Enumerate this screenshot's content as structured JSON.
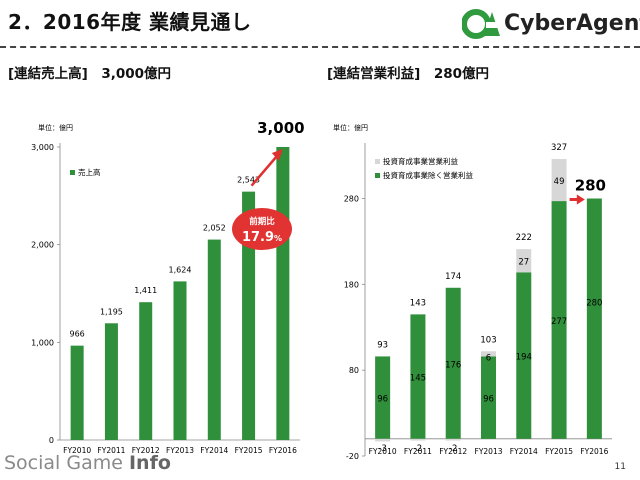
{
  "header": {
    "title": "2．2016年度 業績見通し",
    "logo_text": "CyberAgent"
  },
  "sections": {
    "left": "[連結売上高]　3,000億円",
    "right": "[連結営業利益]　280億円"
  },
  "colors": {
    "bar_green": "#2f8f3a",
    "bar_gray": "#d7d7d7",
    "arrow_red": "#e03030",
    "badge_red": "#e23333"
  },
  "chart_data": [
    {
      "type": "bar",
      "unit_label": "単位：億円",
      "categories": [
        "FY2010",
        "FY2011",
        "FY2012",
        "FY2013",
        "FY2014",
        "FY2015",
        "FY2016"
      ],
      "series": [
        {
          "name": "売上高",
          "values": [
            966,
            1195,
            1411,
            1624,
            2052,
            2543,
            3000
          ]
        }
      ],
      "data_labels": [
        "966",
        "1,195",
        "1,411",
        "1,624",
        "2,052",
        "2,543",
        "3,000"
      ],
      "yticks": [
        0,
        1000,
        2000,
        3000
      ],
      "ytick_labels": [
        "0",
        "1,000",
        "2,000",
        "3,000"
      ],
      "ylim": [
        0,
        3000
      ],
      "legend": "top-left",
      "badge": {
        "line1": "前期比",
        "line2": "17.9",
        "unit": "%"
      }
    },
    {
      "type": "bar",
      "stacked": true,
      "unit_label": "単位：億円",
      "categories": [
        "FY2010",
        "FY2011",
        "FY2012",
        "FY2013",
        "FY2014",
        "FY2015",
        "FY2016"
      ],
      "series": [
        {
          "name": "投資育成事業除く営業利益",
          "values": [
            96,
            145,
            176,
            96,
            194,
            277,
            280
          ],
          "labels": [
            "96",
            "145",
            "176",
            "96",
            "194",
            "277",
            "280"
          ]
        },
        {
          "name": "投資育成事業営業利益",
          "values": [
            -3,
            -2,
            -2,
            6,
            27,
            49,
            0
          ],
          "labels": [
            "-3",
            "-2",
            "-2",
            "6",
            "27",
            "49",
            ""
          ]
        }
      ],
      "totals": [
        "93",
        "143",
        "174",
        "103",
        "222",
        "327",
        "280"
      ],
      "yticks": [
        -20,
        80,
        180,
        280
      ],
      "ytick_labels": [
        "-20",
        "80",
        "180",
        "280"
      ],
      "ylim": [
        -20,
        340
      ],
      "legend": "top-left"
    }
  ],
  "footer": {
    "watermark_a": "Social Game ",
    "watermark_b": "Info",
    "page": "11"
  }
}
